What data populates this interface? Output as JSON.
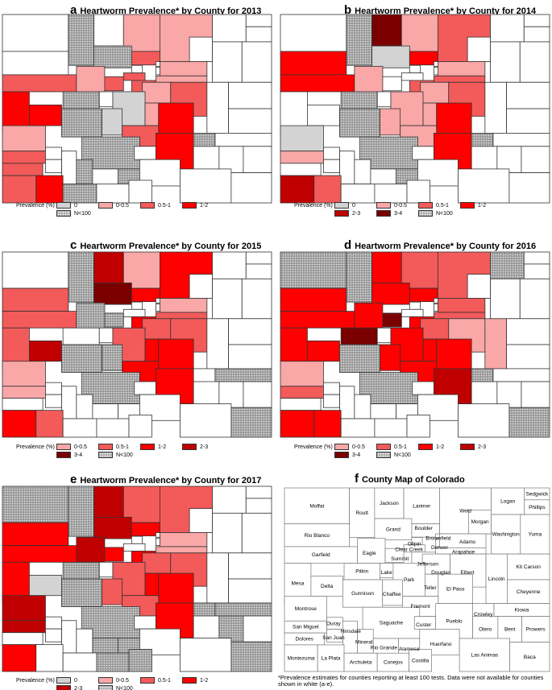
{
  "colors": {
    "0": "#d3d3d3",
    "0-0.5": "#f9a7a7",
    "0.5-1": "#f35a5a",
    "1-2": "#ff0000",
    "2-3": "#c00000",
    "3-4": "#7a0000",
    "N<100": "hatch",
    "none": "#ffffff"
  },
  "legend_label": "Prevalence (%)",
  "panels": [
    {
      "letter": "a",
      "title": "Heartworm Prevalence* by County for 2013",
      "legend": [
        "0",
        "0-0.5",
        "0.5-1",
        "1-2",
        "N<100"
      ],
      "counties": {
        "Routt": "N<100",
        "Grand": "N<100",
        "Larimer": "0-0.5",
        "Weld": "0-0.5",
        "Boulder": "0.5-1",
        "Garfield": "0.5-1",
        "Rio Blanco": "none",
        "Eagle": "0-0.5",
        "Summit": "0.5-1",
        "Mesa": "1-2",
        "Delta": "1-2",
        "Pitkin": "N<100",
        "Gunnison": "N<100",
        "Park": "0",
        "Chaffee": "0",
        "Jefferson": "0.5-1",
        "Adams": "0-0.5",
        "Arapahoe": "0-0.5",
        "Douglas": "0-0.5",
        "Elbert": "0.5-1",
        "Teller": "0-0.5",
        "Fremont": "0.5-1",
        "El Paso": "1-2",
        "Pueblo": "1-2",
        "Crowley": "N<100",
        "Montrose": "0-0.5",
        "San Miguel": "0.5-1",
        "Saguache": "N<100",
        "Mineral": "N<100",
        "Alamosa": "N<100",
        "Archuleta": "N<100",
        "Dolores": "0.5-1",
        "Montezuma": "0.5-1",
        "La Plata": "1-2",
        "Clear Creek": "0.5-1"
      }
    },
    {
      "letter": "b",
      "title": "Heartworm Prevalence* by County for 2014",
      "legend": [
        "0",
        "0-0.5",
        "0.5-1",
        "1-2",
        "2-3",
        "3-4",
        "N<100"
      ],
      "counties": {
        "Jackson": "3-4",
        "Larimer": "0-0.5",
        "Weld": "0.5-1",
        "Boulder": "1-2",
        "Grand": "0",
        "Garfield": "1-2",
        "Rio Blanco": "1-2",
        "Eagle": "0-0.5",
        "Montrose": "0",
        "San Miguel": "0-0.5",
        "Montezuma": "2-3",
        "La Plata": "0.5-1",
        "Pitkin": "N<100",
        "Gunnison": "N<100",
        "Park": "0-0.5",
        "Jefferson": "0.5-1",
        "Douglas": "0-0.5",
        "Adams": "0-0.5",
        "Arapahoe": "0.5-1",
        "Elbert": "0.5-1",
        "El Paso": "1-2",
        "Pueblo": "1-2",
        "Teller": "0-0.5",
        "Fremont": "0-0.5",
        "Chaffee": "0-0.5",
        "Saguache": "N<100",
        "Alamosa": "N<100",
        "Crowley": "N<100",
        "Routt": "N<100"
      }
    },
    {
      "letter": "c",
      "title": "Heartworm Prevalence* by County for 2015",
      "legend": [
        "0-0.5",
        "0.5-1",
        "1-2",
        "2-3",
        "3-4",
        "N<100"
      ],
      "counties": {
        "Jackson": "2-3",
        "Larimer": "0-0.5",
        "Weld": "1-2",
        "Grand": "3-4",
        "Routt": "N<100",
        "Garfield": "0.5-1",
        "Rio Blanco": "0.5-1",
        "Mesa": "0.5-1",
        "Delta": "2-3",
        "Eagle": "N<100",
        "Summit": "N<100",
        "Boulder": "1-2",
        "Jefferson": "1-2",
        "Adams": "0-0.5",
        "Arapahoe": "0.5-1",
        "Douglas": "0.5-1",
        "Elbert": "0.5-1",
        "El Paso": "1-2",
        "Pueblo": "1-2",
        "Teller": "1-2",
        "Park": "0.5-1",
        "Chaffee": "N<100",
        "Fremont": "1-2",
        "Gunnison": "N<100",
        "Montrose": "0-0.5",
        "San Miguel": "0-0.5",
        "La Plata": "0.5-1",
        "Montezuma": "1-2",
        "Saguache": "N<100",
        "Baca": "N<100",
        "Kiowa": "N<100"
      }
    },
    {
      "letter": "d",
      "title": "Heartworm Prevalence* by County for 2016",
      "legend": [
        "0-0.5",
        "0.5-1",
        "1-2",
        "2-3",
        "3-4",
        "N<100"
      ],
      "counties": {
        "Jackson": "1-2",
        "Routt": "N<100",
        "Larimer": "0.5-1",
        "Weld": "0.5-1",
        "Logan": "N<100",
        "Grand": "1-2",
        "Boulder": "1-2",
        "Garfield": "1-2",
        "Rio Blanco": "1-2",
        "Moffat": "N<100",
        "Eagle": "1-2",
        "Summit": "3-4",
        "Pitkin": "3-4",
        "Mesa": "1-2",
        "Delta": "1-2",
        "Montrose": "0-0.5",
        "San Miguel": "0.5-1",
        "Montezuma": "1-2",
        "La Plata": "1-2",
        "Jefferson": "1-2",
        "Adams": "0.5-1",
        "Arapahoe": "0.5-1",
        "Douglas": "0.5-1",
        "Elbert": "0-0.5",
        "Lincoln": "0-0.5",
        "El Paso": "1-2",
        "Pueblo": "2-3",
        "Park": "1-2",
        "Chaffee": "1-2",
        "Teller": "1-2",
        "Fremont": "1-2",
        "Gunnison": "N<100",
        "Saguache": "N<100",
        "Baca": "N<100",
        "Crowley": "N<100"
      }
    },
    {
      "letter": "e",
      "title": "Heartworm Prevalence* by County for 2017",
      "legend": [
        "0",
        "0-0.5",
        "0.5-1",
        "1-2",
        "2-3",
        "N<100"
      ],
      "counties": {
        "Jackson": "2-3",
        "Routt": "N<100",
        "Larimer": "0.5-1",
        "Weld": "0.5-1",
        "Moffat": "N<100",
        "Rio Blanco": "1-2",
        "Garfield": "1-2",
        "Grand": "2-3",
        "Eagle": "2-3",
        "Summit": "1-2",
        "Boulder": "1-2",
        "Mesa": "1-2",
        "Delta": "0",
        "Montrose": "2-3",
        "San Miguel": "2-3",
        "Montezuma": "1-2",
        "Pitkin": "N<100",
        "Gunnison": "N<100",
        "Park": "0.5-1",
        "Jefferson": "1-2",
        "Douglas": "0.5-1",
        "Adams": "0-0.5",
        "Arapahoe": "0-0.5",
        "Elbert": "0.5-1",
        "Teller": "1-2",
        "El Paso": "1-2",
        "Pueblo": "1-2",
        "Chaffee": "0.5-1",
        "Fremont": "0.5-1",
        "Saguache": "N<100",
        "Rio Grande": "N<100",
        "Alamosa": "N<100",
        "Conejos": "N<100",
        "Costilla": "N<100",
        "Baca": "N<100",
        "Kiowa": "N<100",
        "Bent": "N<100",
        "Crowley": "N<100"
      }
    }
  ],
  "county_map": {
    "letter": "f",
    "title": "County Map of Colorado",
    "names": [
      "Moffat",
      "Routt",
      "Jackson",
      "Larimer",
      "Weld",
      "Logan",
      "Sedgwick",
      "Phillips",
      "Morgan",
      "Washington",
      "Yuma",
      "Rio Blanco",
      "Garfield",
      "Grand",
      "Eagle",
      "Summit",
      "Boulder",
      "Broomfield",
      "Gilpin",
      "Clear Creek",
      "Denver",
      "Adams",
      "Arapahoe",
      "Jefferson",
      "Douglas",
      "Elbert",
      "Lincoln",
      "Kit Carson",
      "Cheyenne",
      "Mesa",
      "Delta",
      "Pitkin",
      "Lake",
      "Park",
      "Teller",
      "El Paso",
      "Gunnison",
      "Chaffee",
      "Fremont",
      "Montrose",
      "Kiowa",
      "Crowley",
      "Pueblo",
      "Saguache",
      "Custer",
      "Otero",
      "Bent",
      "Prowers",
      "San Miguel",
      "Ouray",
      "Hinsdale",
      "San Juan",
      "Dolores",
      "Mineral",
      "Rio Grande",
      "Alamosa",
      "Huerfano",
      "Las Animas",
      "Baca",
      "Montezuma",
      "La Plata",
      "Archuleta",
      "Conejos",
      "Costilla"
    ]
  },
  "footnote": "*Prevalence estimates for counties reporting at least 100 tests. Data were not available for counties shown in white (a-e)."
}
